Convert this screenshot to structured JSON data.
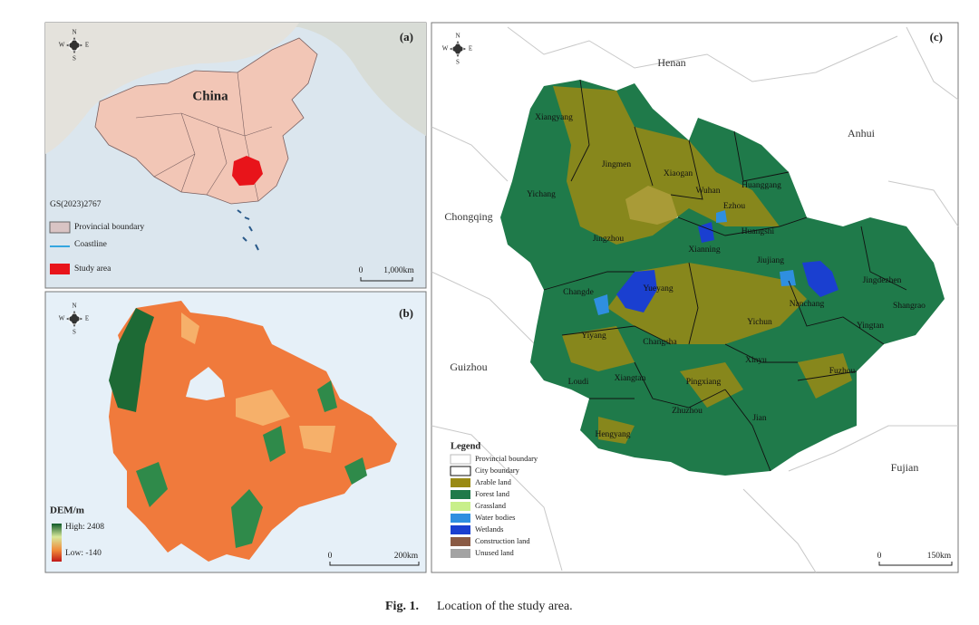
{
  "compass": {
    "north": "N",
    "south": "S",
    "west": "W",
    "east": "E"
  },
  "panel_a": {
    "label": "(a)",
    "country": "China",
    "map_number": "GS(2023)2767",
    "legend": [
      {
        "label": "Provincial boundary",
        "color": "#d9c4c4"
      },
      {
        "label": "Coastline",
        "color": "#35a7e0"
      },
      {
        "label": "Study area",
        "color": "#e8141a"
      }
    ],
    "scale": [
      "0",
      "1,000km"
    ]
  },
  "panel_b": {
    "label": "(b)",
    "legend_title": "DEM/m",
    "high": "High: 2408",
    "low": "Low: -140",
    "scale": [
      "0",
      "200km"
    ]
  },
  "panel_c": {
    "label": "(c)",
    "provinces": [
      "Henan",
      "Anhui",
      "Chongqing",
      "Guizhou",
      "Fujian"
    ],
    "cities": [
      "Xiangyang",
      "Jingmen",
      "Xiaogan",
      "Wuhan",
      "Huanggang",
      "Ezhou",
      "Huangshi",
      "Yichang",
      "Jingzhou",
      "Xianning",
      "Jiujiang",
      "Jingdezhen",
      "Shangrao",
      "Changde",
      "Yueyang",
      "Nanchang",
      "Yingtan",
      "Yichun",
      "Yiyang",
      "Changsha",
      "Xinyu",
      "Loudi",
      "Xiangtan",
      "Pingxiang",
      "Zhuzhou",
      "Fuzhou",
      "Jian",
      "Hengyang"
    ],
    "legend_title": "Legend",
    "legend": [
      {
        "label": "Provincial boundary",
        "color": "#ffffff"
      },
      {
        "label": "City boundary",
        "color": "#ffffff"
      },
      {
        "label": "Arable land",
        "color": "#9a8a14"
      },
      {
        "label": "Forest land",
        "color": "#1f7a4a"
      },
      {
        "label": "Grassland",
        "color": "#c8ef8a"
      },
      {
        "label": "Water bodies",
        "color": "#2f8fe0"
      },
      {
        "label": "Wetlands",
        "color": "#1a3fd0"
      },
      {
        "label": "Construction land",
        "color": "#8a5a44"
      },
      {
        "label": "Unused land",
        "color": "#a3a3a3"
      }
    ],
    "scale": [
      "0",
      "150km"
    ]
  },
  "caption": {
    "label": "Fig. 1.",
    "text": "Location of the study area."
  }
}
